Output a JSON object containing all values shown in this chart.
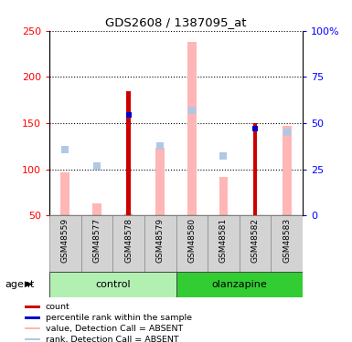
{
  "title": "GDS2608 / 1387095_at",
  "samples": [
    "GSM48559",
    "GSM48577",
    "GSM48578",
    "GSM48579",
    "GSM48580",
    "GSM48581",
    "GSM48582",
    "GSM48583"
  ],
  "groups": [
    {
      "name": "control",
      "samples": [
        0,
        1,
        2,
        3
      ],
      "color": "#b2f0b2"
    },
    {
      "name": "olanzapine",
      "samples": [
        4,
        5,
        6,
        7
      ],
      "color": "#32cd32"
    }
  ],
  "count_values": [
    null,
    null,
    185,
    null,
    null,
    null,
    150,
    null
  ],
  "percentile_values": [
    null,
    null,
    159,
    null,
    null,
    null,
    144,
    null
  ],
  "absent_value": [
    97,
    63,
    52,
    123,
    238,
    92,
    null,
    147
  ],
  "absent_rank": [
    121,
    104,
    null,
    125,
    164,
    114,
    null,
    140
  ],
  "ylim_left": [
    50,
    250
  ],
  "ylim_right": [
    0,
    100
  ],
  "yticks_left": [
    50,
    100,
    150,
    200,
    250
  ],
  "yticks_right": [
    0,
    25,
    50,
    75,
    100
  ],
  "ytick_labels_right": [
    "0",
    "25",
    "50",
    "75",
    "100%"
  ],
  "color_count": "#cc0000",
  "color_percentile": "#0000cc",
  "color_absent_value": "#ffb6b6",
  "color_absent_rank": "#b0c8e8",
  "agent_label": "agent",
  "legend_items": [
    {
      "color": "#cc0000",
      "label": "count"
    },
    {
      "color": "#0000cc",
      "label": "percentile rank within the sample"
    },
    {
      "color": "#ffb6b6",
      "label": "value, Detection Call = ABSENT"
    },
    {
      "color": "#b0c8e8",
      "label": "rank, Detection Call = ABSENT"
    }
  ]
}
